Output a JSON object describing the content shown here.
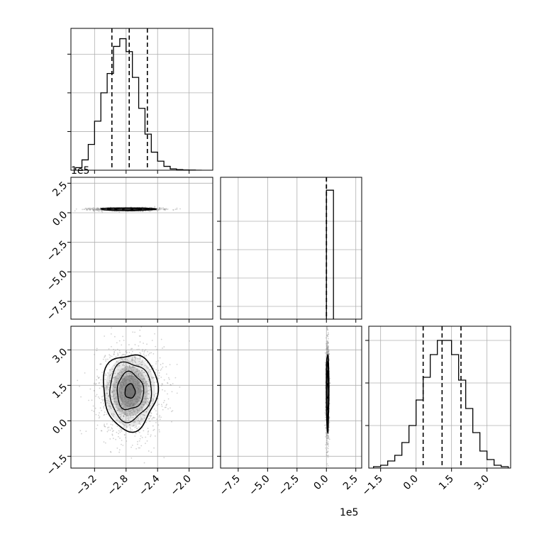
{
  "chart_data": {
    "type": "corner",
    "grid": true,
    "colors": {
      "line": "#000000",
      "grid": "#b0b0b0",
      "scatter": "#9a9a9a",
      "density": "#666666"
    },
    "panels": [
      {
        "id": "hist-0",
        "type": "histogram",
        "xlim": [
          -3.5,
          -1.7
        ],
        "bin_edges": [
          -3.44,
          -3.36,
          -3.28,
          -3.2,
          -3.12,
          -3.04,
          -2.96,
          -2.88,
          -2.8,
          -2.72,
          -2.64,
          -2.56,
          -2.48,
          -2.4,
          -2.32,
          -2.24,
          -2.16,
          -2.08,
          -2.0,
          -1.92,
          -1.84
        ],
        "counts": [
          2,
          8,
          20,
          38,
          60,
          75,
          96,
          102,
          92,
          72,
          48,
          28,
          14,
          7,
          3,
          1,
          0.5,
          0.2,
          0.1,
          0
        ],
        "ymax": 110,
        "y_grid": [
          30,
          60,
          90
        ],
        "quantiles": [
          -2.98,
          -2.76,
          -2.53
        ],
        "xticks": [
          -3.2,
          -2.8,
          -2.4,
          -2.0
        ],
        "yticks": []
      },
      {
        "id": "hist-1",
        "type": "histogram",
        "xlim": [
          -9.0,
          3.0
        ],
        "bin_edges": [
          0.0,
          0.6
        ],
        "counts": [
          100
        ],
        "ymax": 110,
        "y_grid": [],
        "quantiles": [
          0.0,
          0.0,
          0.0
        ],
        "xticks": [
          -7.5,
          -5.0,
          -2.5,
          0.0,
          2.5
        ],
        "yticks": []
      },
      {
        "id": "hist-2",
        "type": "histogram",
        "xlim": [
          -2.0,
          4.0
        ],
        "bin_edges": [
          -1.8,
          -1.5,
          -1.2,
          -0.9,
          -0.6,
          -0.3,
          0.0,
          0.3,
          0.6,
          0.9,
          1.2,
          1.5,
          1.8,
          2.1,
          2.4,
          2.7,
          3.0,
          3.3,
          3.6,
          3.9
        ],
        "counts": [
          1,
          2,
          5,
          9,
          18,
          30,
          48,
          64,
          80,
          90,
          90,
          80,
          62,
          42,
          25,
          12,
          6,
          2,
          1
        ],
        "ymax": 100,
        "y_grid": [
          30,
          60,
          90
        ],
        "quantiles": [
          0.3,
          1.1,
          1.9
        ],
        "xticks": [
          -1.5,
          0.0,
          1.5,
          3.0
        ],
        "yticks": []
      },
      {
        "id": "joint-1-0",
        "type": "contour",
        "xlim": [
          -3.5,
          -1.7
        ],
        "ylim": [
          -9.0,
          3.0
        ],
        "center": [
          -2.78,
          0.3
        ],
        "sigma": [
          0.16,
          0.05
        ],
        "xticks": [],
        "yticks": [
          -7.5,
          -5.0,
          -2.5,
          0.0,
          2.5
        ]
      },
      {
        "id": "joint-2-0",
        "type": "contour",
        "xlim": [
          -3.5,
          -1.7
        ],
        "ylim": [
          -2.0,
          4.0
        ],
        "center": [
          -2.75,
          1.25
        ],
        "sigma": [
          0.16,
          0.75
        ],
        "xticks": [
          -3.2,
          -2.8,
          -2.4,
          -2.0
        ],
        "yticks": [
          -1.5,
          0.0,
          1.5,
          3.0
        ]
      },
      {
        "id": "joint-2-1",
        "type": "contour",
        "xlim": [
          -9.0,
          3.0
        ],
        "ylim": [
          -2.0,
          4.0
        ],
        "center": [
          0.1,
          1.25
        ],
        "sigma": [
          0.05,
          0.75
        ],
        "xticks": [
          -7.5,
          -5.0,
          -2.5,
          0.0,
          2.5
        ],
        "yticks": []
      }
    ],
    "tick_labels": {
      "param0": [
        "−3.2",
        "−2.8",
        "−2.4",
        "−2.0"
      ],
      "param1": [
        "−7.5",
        "−5.0",
        "−2.5",
        "0.0",
        "2.5"
      ],
      "param2": [
        "−1.5",
        "0.0",
        "1.5",
        "3.0"
      ]
    },
    "offset_labels": {
      "row1_y": "1e5",
      "col1_x": "1e5"
    }
  }
}
